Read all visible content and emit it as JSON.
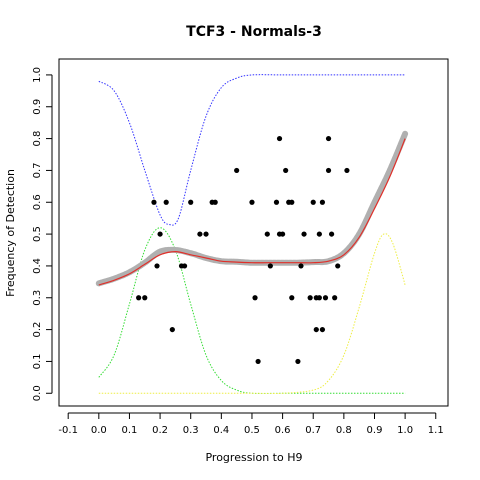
{
  "chart_data": {
    "type": "scatter",
    "title": "TCF3 - Normals-3",
    "xlabel": "Progression to H9",
    "ylabel": "Frequency of Detection",
    "xlim": [
      -0.13,
      1.14
    ],
    "ylim": [
      -0.04,
      1.05
    ],
    "xticks": [
      "-0.1",
      "0.0",
      "0.1",
      "0.2",
      "0.3",
      "0.4",
      "0.5",
      "0.6",
      "0.7",
      "0.8",
      "0.9",
      "1.0",
      "1.1"
    ],
    "yticks": [
      "0.0",
      "0.1",
      "0.2",
      "0.3",
      "0.4",
      "0.5",
      "0.6",
      "0.7",
      "0.8",
      "0.9",
      "1.0"
    ],
    "grid": false,
    "legend": "none",
    "colors": {
      "points": "#000000",
      "smooth_band": "#b0b0b0",
      "fit_line": "#e0302a",
      "curve_blue": "#3333ff",
      "curve_green": "#33dd33",
      "curve_yellow": "#eeee44"
    },
    "series": [
      {
        "kind": "points",
        "points": [
          [
            0.13,
            0.3
          ],
          [
            0.15,
            0.3
          ],
          [
            0.18,
            0.6
          ],
          [
            0.19,
            0.4
          ],
          [
            0.2,
            0.5
          ],
          [
            0.22,
            0.6
          ],
          [
            0.24,
            0.2
          ],
          [
            0.27,
            0.4
          ],
          [
            0.28,
            0.4
          ],
          [
            0.3,
            0.6
          ],
          [
            0.33,
            0.5
          ],
          [
            0.35,
            0.5
          ],
          [
            0.37,
            0.6
          ],
          [
            0.38,
            0.6
          ],
          [
            0.45,
            0.7
          ],
          [
            0.5,
            0.6
          ],
          [
            0.51,
            0.3
          ],
          [
            0.52,
            0.1
          ],
          [
            0.55,
            0.5
          ],
          [
            0.56,
            0.4
          ],
          [
            0.58,
            0.6
          ],
          [
            0.59,
            0.8
          ],
          [
            0.59,
            0.5
          ],
          [
            0.6,
            0.5
          ],
          [
            0.61,
            0.7
          ],
          [
            0.62,
            0.6
          ],
          [
            0.63,
            0.3
          ],
          [
            0.63,
            0.6
          ],
          [
            0.65,
            0.1
          ],
          [
            0.66,
            0.4
          ],
          [
            0.67,
            0.5
          ],
          [
            0.69,
            0.3
          ],
          [
            0.7,
            0.6
          ],
          [
            0.71,
            0.3
          ],
          [
            0.71,
            0.2
          ],
          [
            0.72,
            0.3
          ],
          [
            0.72,
            0.5
          ],
          [
            0.73,
            0.2
          ],
          [
            0.73,
            0.6
          ],
          [
            0.74,
            0.3
          ],
          [
            0.75,
            0.8
          ],
          [
            0.75,
            0.7
          ],
          [
            0.76,
            0.5
          ],
          [
            0.77,
            0.3
          ],
          [
            0.78,
            0.4
          ],
          [
            0.81,
            0.7
          ]
        ]
      },
      {
        "kind": "smoothed band",
        "points": [
          [
            0.0,
            0.345
          ],
          [
            0.05,
            0.36
          ],
          [
            0.1,
            0.38
          ],
          [
            0.15,
            0.41
          ],
          [
            0.2,
            0.445
          ],
          [
            0.25,
            0.45
          ],
          [
            0.3,
            0.44
          ],
          [
            0.35,
            0.425
          ],
          [
            0.4,
            0.415
          ],
          [
            0.45,
            0.413
          ],
          [
            0.5,
            0.41
          ],
          [
            0.55,
            0.41
          ],
          [
            0.6,
            0.41
          ],
          [
            0.65,
            0.41
          ],
          [
            0.7,
            0.412
          ],
          [
            0.75,
            0.415
          ],
          [
            0.8,
            0.44
          ],
          [
            0.85,
            0.5
          ],
          [
            0.9,
            0.6
          ],
          [
            0.95,
            0.7
          ],
          [
            1.0,
            0.815
          ]
        ]
      },
      {
        "kind": "fitted line",
        "points": [
          [
            0.0,
            0.34
          ],
          [
            0.05,
            0.355
          ],
          [
            0.1,
            0.375
          ],
          [
            0.15,
            0.405
          ],
          [
            0.2,
            0.435
          ],
          [
            0.25,
            0.445
          ],
          [
            0.3,
            0.435
          ],
          [
            0.35,
            0.425
          ],
          [
            0.4,
            0.415
          ],
          [
            0.45,
            0.412
          ],
          [
            0.5,
            0.41
          ],
          [
            0.55,
            0.41
          ],
          [
            0.6,
            0.41
          ],
          [
            0.65,
            0.41
          ],
          [
            0.7,
            0.41
          ],
          [
            0.75,
            0.415
          ],
          [
            0.8,
            0.435
          ],
          [
            0.85,
            0.49
          ],
          [
            0.9,
            0.58
          ],
          [
            0.95,
            0.68
          ],
          [
            1.0,
            0.8
          ]
        ]
      },
      {
        "kind": "dotted curve blue",
        "points": [
          [
            0.0,
            0.98
          ],
          [
            0.05,
            0.95
          ],
          [
            0.1,
            0.85
          ],
          [
            0.15,
            0.7
          ],
          [
            0.2,
            0.56
          ],
          [
            0.23,
            0.53
          ],
          [
            0.26,
            0.55
          ],
          [
            0.3,
            0.7
          ],
          [
            0.35,
            0.87
          ],
          [
            0.4,
            0.96
          ],
          [
            0.45,
            0.99
          ],
          [
            0.5,
            1.0
          ],
          [
            0.6,
            1.0
          ],
          [
            0.7,
            1.0
          ],
          [
            0.8,
            1.0
          ],
          [
            0.9,
            1.0
          ],
          [
            1.0,
            1.0
          ]
        ]
      },
      {
        "kind": "dotted curve green",
        "points": [
          [
            0.0,
            0.05
          ],
          [
            0.05,
            0.12
          ],
          [
            0.1,
            0.28
          ],
          [
            0.15,
            0.45
          ],
          [
            0.2,
            0.52
          ],
          [
            0.25,
            0.45
          ],
          [
            0.3,
            0.28
          ],
          [
            0.35,
            0.12
          ],
          [
            0.4,
            0.04
          ],
          [
            0.45,
            0.01
          ],
          [
            0.5,
            0.0
          ],
          [
            0.6,
            0.0
          ],
          [
            0.7,
            0.0
          ],
          [
            0.8,
            0.0
          ],
          [
            0.9,
            0.0
          ],
          [
            1.0,
            0.0
          ]
        ]
      },
      {
        "kind": "dotted curve yellow",
        "points": [
          [
            0.0,
            0.0
          ],
          [
            0.5,
            0.0
          ],
          [
            0.6,
            0.0
          ],
          [
            0.7,
            0.01
          ],
          [
            0.75,
            0.04
          ],
          [
            0.8,
            0.12
          ],
          [
            0.85,
            0.27
          ],
          [
            0.9,
            0.44
          ],
          [
            0.93,
            0.5
          ],
          [
            0.96,
            0.47
          ],
          [
            1.0,
            0.34
          ]
        ]
      }
    ]
  }
}
